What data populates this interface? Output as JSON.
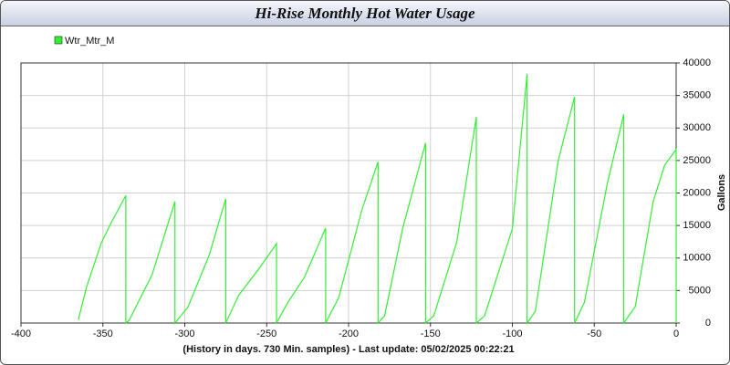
{
  "chart_data": {
    "type": "line",
    "title": "Hi-Rise Monthly Hot Water Usage",
    "caption": "(History in days. 730 Min. samples) - Last update: 05/02/2025 00:22:21",
    "y_label": "Gallons",
    "x": [
      -365,
      -360,
      -351,
      -345,
      -336,
      -336,
      -334,
      -320,
      -306,
      -306,
      -298,
      -285,
      -275,
      -275,
      -267,
      -254,
      -244,
      -244,
      -237,
      -227,
      -214,
      -214,
      -206,
      -192,
      -182,
      -182,
      -178,
      -167,
      -153,
      -153,
      -148,
      -134,
      -122,
      -122,
      -117,
      -100,
      -91,
      -91,
      -86,
      -72,
      -62,
      -62,
      -56,
      -42,
      -32,
      -32,
      -25,
      -14,
      -7,
      0,
      0
    ],
    "series": [
      {
        "name": "Wtr_Mtr_M",
        "color": "#33ee33",
        "values": [
          500,
          5500,
          12300,
          15400,
          19600,
          0,
          400,
          7400,
          18700,
          0,
          2500,
          10500,
          19100,
          0,
          4300,
          8600,
          12200,
          0,
          3200,
          7000,
          14600,
          0,
          3900,
          17300,
          24800,
          0,
          1100,
          14500,
          27700,
          0,
          1100,
          12400,
          31700,
          0,
          1100,
          14500,
          38300,
          0,
          1800,
          25000,
          34800,
          0,
          3200,
          21500,
          32100,
          0,
          2500,
          18700,
          24300,
          26700,
          0
        ]
      }
    ],
    "xlim": [
      -400,
      0
    ],
    "xticks": [
      -400,
      -350,
      -300,
      -250,
      -200,
      -150,
      -100,
      -50,
      0
    ],
    "ylim": [
      0,
      40000
    ],
    "yticks": [
      0,
      5000,
      10000,
      15000,
      20000,
      25000,
      30000,
      35000,
      40000
    ],
    "grid": true
  }
}
